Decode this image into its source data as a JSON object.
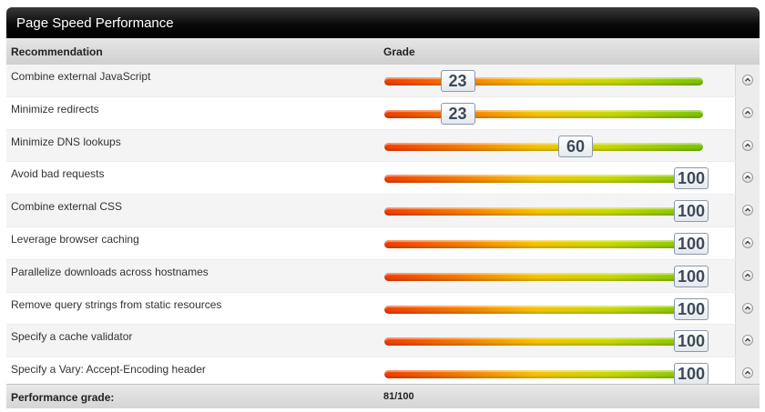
{
  "panel": {
    "title": "Page Speed Performance"
  },
  "table": {
    "headers": {
      "recommendation": "Recommendation",
      "grade": "Grade"
    },
    "rows": [
      {
        "recommendation": "Combine external JavaScript",
        "grade": 23
      },
      {
        "recommendation": "Minimize redirects",
        "grade": 23
      },
      {
        "recommendation": "Minimize DNS lookups",
        "grade": 60
      },
      {
        "recommendation": "Avoid bad requests",
        "grade": 100
      },
      {
        "recommendation": "Combine external CSS",
        "grade": 100
      },
      {
        "recommendation": "Leverage browser caching",
        "grade": 100
      },
      {
        "recommendation": "Parallelize downloads across hostnames",
        "grade": 100
      },
      {
        "recommendation": "Remove query strings from static resources",
        "grade": 100
      },
      {
        "recommendation": "Specify a cache validator",
        "grade": 100
      },
      {
        "recommendation": "Specify a Vary: Accept-Encoding header",
        "grade": 100
      }
    ],
    "footer": {
      "label": "Performance grade:",
      "value": "81/100"
    }
  },
  "icons": {
    "row_toggle": "chevron-up-icon"
  },
  "colors": {
    "title_bar": "#000000",
    "bar_low": "#f23c00",
    "bar_mid": "#f5c300",
    "bar_high": "#78c200",
    "score_text": "#3d4a57"
  }
}
